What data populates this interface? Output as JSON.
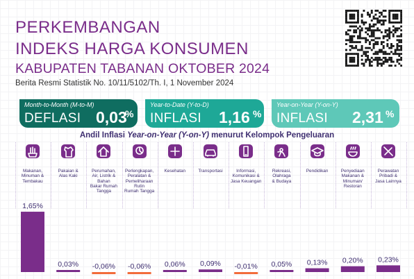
{
  "header": {
    "title_line1": "PERKEMBANGAN",
    "title_line2": "INDEKS HARGA KONSUMEN",
    "title_line3": "KABUPATEN TABANAN OKTOBER 2024",
    "subtitle": "Berita Resmi Statistik No. 10/11/5102/Th. I, 1 November 2024"
  },
  "cards": [
    {
      "label": "Month-to-Month (M-to-M)",
      "kind": "DEFLASI",
      "value": "0,03",
      "unit": "%",
      "color": "#0f6d60"
    },
    {
      "label": "Year-to-Date (Y-to-D)",
      "kind": "INFLASI",
      "value": "1,16",
      "unit": "%",
      "color": "#1ea897"
    },
    {
      "label": "Year-on-Year (Y-on-Y)",
      "kind": "INFLASI",
      "value": "2,31",
      "unit": "%",
      "color": "#5ec8b8"
    }
  ],
  "chart_title": {
    "part1": "Andil Inflasi ",
    "part2": "Year-on-Year (Y-on-Y)",
    "part3": " menurut Kelompok Pengeluaran"
  },
  "chart_data": {
    "type": "bar",
    "title": "Andil Inflasi Year-on-Year (Y-on-Y) menurut Kelompok Pengeluaran",
    "categories": [
      "Makanan, Minuman & Tembakau",
      "Pakaian & Alas Kaki",
      "Perumahan, Air, Listrik & Bahan Bakar Rumah Tangga",
      "Perlengkapan, Peralatan & Pemeliharaan Rutin Rumah Tangga",
      "Kesehatan",
      "Transportasi",
      "Informasi, Komunikasi & Jasa Keuangan",
      "Rekreasi, Olahraga & Budaya",
      "Pendidikan",
      "Penyediaan Makanan & Minuman/ Restoran",
      "Perawatan Pribadi & Jasa Lainnya"
    ],
    "category_lines": [
      [
        "Makanan,",
        "Minuman &",
        "Tembakau"
      ],
      [
        "Pakaian &",
        "Alas Kaki"
      ],
      [
        "Perumahan,",
        "Air, Listrik &",
        "Bahan",
        "Bakar Rumah",
        "Tangga"
      ],
      [
        "Perlengkapan,",
        "Peralatan &",
        "Pemeliharaan",
        "Rutin",
        "Rumah Tangga"
      ],
      [
        "Kesehatan"
      ],
      [
        "Transportasi"
      ],
      [
        "Informasi,",
        "Komunikasi &",
        "Jasa Keuangan"
      ],
      [
        "Rekreasi,",
        "Olahraga",
        "& Budaya"
      ],
      [
        "Pendidikan"
      ],
      [
        "Penyediaan",
        "Makanan &",
        "Minuman/",
        "Restoran"
      ],
      [
        "Perawatan",
        "Pribadi &",
        "Jasa Lainnya"
      ]
    ],
    "icons": [
      "food-icon",
      "clothing-icon",
      "house-icon",
      "household-icon",
      "health-icon",
      "car-icon",
      "phone-icon",
      "sports-icon",
      "graduation-cap-icon",
      "restaurant-icon",
      "personal-care-icon"
    ],
    "values": [
      1.65,
      0.03,
      -0.06,
      -0.06,
      0.06,
      0.09,
      -0.01,
      0.05,
      0.13,
      0.2,
      0.23
    ],
    "labels": [
      "1,65%",
      "0,03%",
      "-0,06%",
      "-0,06%",
      "0,06%",
      "0,09%",
      "-0,01%",
      "0,05%",
      "0,13%",
      "0,20%",
      "0,23%"
    ],
    "colors": {
      "positive": "#7a2d8a",
      "negative": "#f26b3a",
      "label": "#3e2e70",
      "icon_bg": "#7a2d8a"
    }
  }
}
